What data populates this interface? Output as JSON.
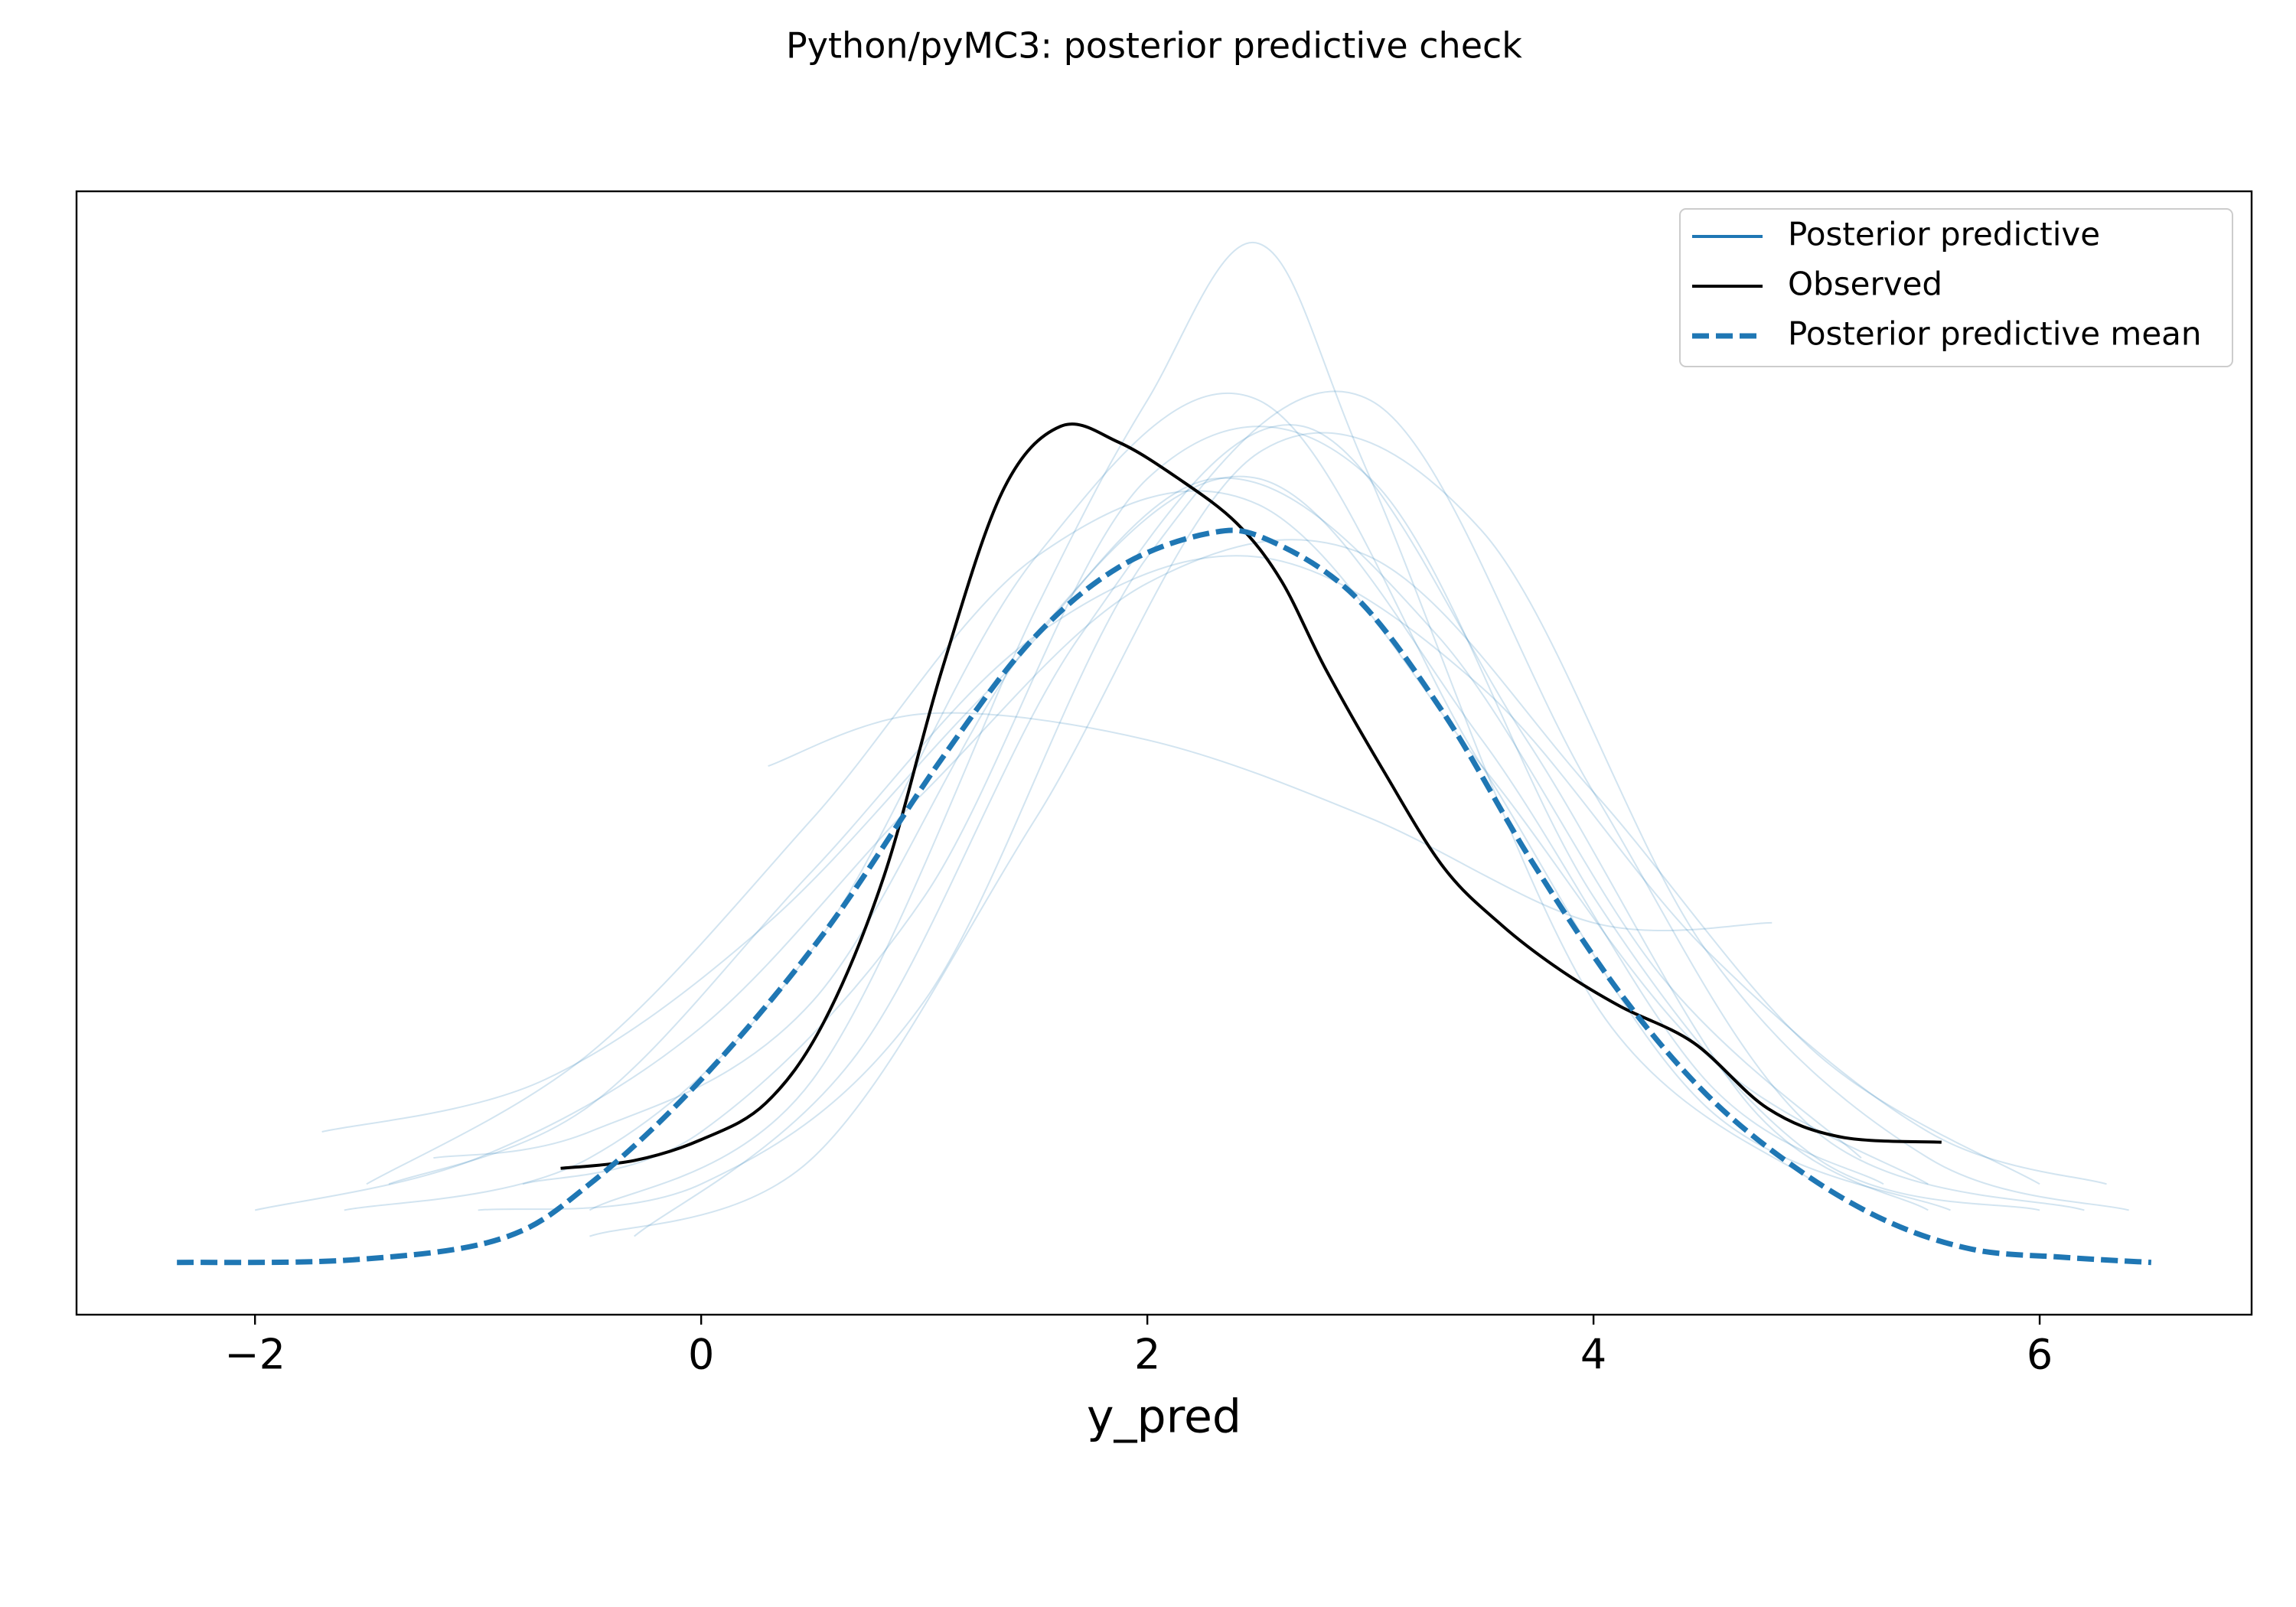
{
  "chart_data": {
    "type": "kde",
    "title": "Python/pyMC3: posterior predictive check",
    "xlabel": "y_pred",
    "xlim": [
      -2.8,
      6.95
    ],
    "ylim": [
      -0.02,
      0.41
    ],
    "xticks": [
      {
        "value": -2,
        "label": "−2"
      },
      0,
      2,
      4,
      6
    ],
    "legend": "upper right",
    "grid": false,
    "series": [
      {
        "name": "Posterior predictive",
        "color": "#1f77b4",
        "dashed": false,
        "opacity": 0.2,
        "samples": [
          {
            "x": [
              -1.2,
              -0.5,
              0.5,
              1.5,
              2.5,
              3.5,
              4.5,
              5.3
            ],
            "values": [
              0.04,
              0.05,
              0.1,
              0.24,
              0.3,
              0.2,
              0.07,
              0.03
            ]
          },
          {
            "x": [
              -1.6,
              -0.5,
              0.5,
              1.5,
              2.5,
              3.5,
              4.5,
              5.6
            ],
            "values": [
              0.02,
              0.04,
              0.12,
              0.27,
              0.33,
              0.19,
              0.06,
              0.02
            ]
          },
          {
            "x": [
              -0.8,
              0,
              1,
              2,
              3,
              4,
              5,
              6
            ],
            "values": [
              0.03,
              0.05,
              0.14,
              0.3,
              0.3,
              0.14,
              0.04,
              0.02
            ]
          },
          {
            "x": [
              -0.5,
              0.5,
              1.5,
              2,
              2.5,
              3,
              4,
              5
            ],
            "values": [
              0.02,
              0.07,
              0.25,
              0.33,
              0.39,
              0.3,
              0.1,
              0.03
            ]
          },
          {
            "x": [
              0.3,
              1,
              2,
              3,
              4,
              4.8
            ],
            "values": [
              0.19,
              0.21,
              0.2,
              0.17,
              0.13,
              0.13
            ]
          },
          {
            "x": [
              -1.4,
              -0.5,
              0.5,
              1.5,
              2.5,
              3.5,
              4.5,
              5.5,
              6.3
            ],
            "values": [
              0.03,
              0.06,
              0.15,
              0.24,
              0.27,
              0.22,
              0.12,
              0.05,
              0.03
            ]
          },
          {
            "x": [
              -1,
              0,
              1,
              2,
              3,
              4,
              5,
              6.2
            ],
            "values": [
              0.02,
              0.03,
              0.1,
              0.27,
              0.33,
              0.18,
              0.05,
              0.02
            ]
          },
          {
            "x": [
              -2,
              -1,
              0,
              1,
              2,
              3,
              4,
              5,
              6
            ],
            "values": [
              0.02,
              0.04,
              0.09,
              0.18,
              0.26,
              0.27,
              0.18,
              0.08,
              0.03
            ]
          },
          {
            "x": [
              -0.3,
              0.7,
              1.7,
              2.7,
              3.7,
              4.7,
              5.5
            ],
            "values": [
              0.01,
              0.08,
              0.24,
              0.32,
              0.2,
              0.06,
              0.02
            ]
          },
          {
            "x": [
              -1.5,
              -0.5,
              0.5,
              1.5,
              2.5,
              3.5,
              4.5,
              5.5
            ],
            "values": [
              0.03,
              0.08,
              0.17,
              0.27,
              0.29,
              0.19,
              0.08,
              0.03
            ]
          },
          {
            "x": [
              -0.5,
              0.5,
              1.5,
              2.5,
              3.5,
              4.5,
              5.5,
              6.4
            ],
            "values": [
              0.01,
              0.04,
              0.17,
              0.31,
              0.28,
              0.12,
              0.04,
              0.02
            ]
          },
          {
            "x": [
              -1.7,
              -0.7,
              0.3,
              1.3,
              2.3,
              3.3,
              4.3,
              5.2
            ],
            "values": [
              0.05,
              0.07,
              0.13,
              0.22,
              0.3,
              0.24,
              0.11,
              0.04
            ]
          }
        ]
      },
      {
        "name": "Observed",
        "color": "#000000",
        "dashed": false,
        "opacity": 1,
        "x": [
          -0.63,
          -0.3,
          0,
          0.29,
          0.55,
          0.82,
          1.08,
          1.35,
          1.61,
          1.87,
          2.14,
          2.4,
          2.6,
          2.8,
          3.06,
          3.33,
          3.59,
          3.85,
          4.12,
          4.45,
          4.78,
          5.11,
          5.56
        ],
        "values": [
          0.036,
          0.039,
          0.047,
          0.061,
          0.092,
          0.148,
          0.227,
          0.295,
          0.32,
          0.314,
          0.3,
          0.283,
          0.261,
          0.227,
          0.188,
          0.151,
          0.129,
          0.112,
          0.098,
          0.084,
          0.059,
          0.048,
          0.046
        ]
      },
      {
        "name": "Posterior predictive mean",
        "color": "#1f77b4",
        "dashed": true,
        "opacity": 1,
        "x": [
          -2.35,
          -1.56,
          -0.9,
          -0.5,
          0,
          0.55,
          1.08,
          1.48,
          1.87,
          2.27,
          2.53,
          2.93,
          3.33,
          3.72,
          4.12,
          4.51,
          4.91,
          5.31,
          5.7,
          6.1,
          6.5
        ],
        "values": [
          0,
          0.001,
          0.009,
          0.03,
          0.07,
          0.126,
          0.193,
          0.238,
          0.266,
          0.279,
          0.277,
          0.255,
          0.21,
          0.154,
          0.103,
          0.064,
          0.036,
          0.016,
          0.005,
          0.002,
          0
        ]
      }
    ]
  }
}
